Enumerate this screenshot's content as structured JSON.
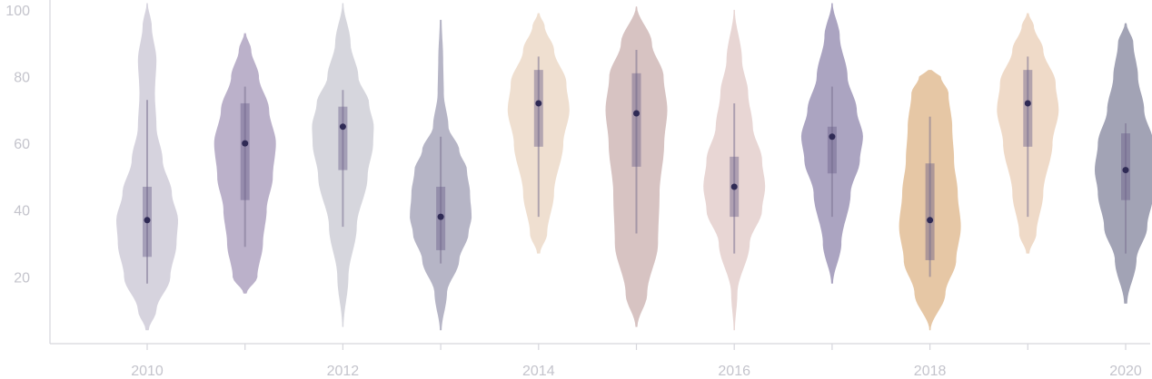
{
  "chart_data": {
    "type": "violin",
    "title": "",
    "xlabel": "",
    "ylabel": "",
    "ylim": [
      0,
      102
    ],
    "y_ticks": [
      20,
      40,
      60,
      80,
      100
    ],
    "x_ticks": [
      2010,
      2011,
      2012,
      2013,
      2014,
      2015,
      2016,
      2017,
      2018,
      2019,
      2020
    ],
    "x_tick_labels": [
      "2010",
      "",
      "2012",
      "",
      "2014",
      "",
      "2016",
      "",
      "2018",
      "",
      "2020"
    ],
    "grid": false,
    "legend": "none",
    "series": [
      {
        "x": 2010,
        "color": "#d6d3de",
        "min": 18,
        "q1": 26,
        "median": 37,
        "q3": 47,
        "max": 73,
        "range": [
          4,
          102
        ],
        "profile": [
          [
            4,
            0.05
          ],
          [
            10,
            0.3
          ],
          [
            20,
            0.75
          ],
          [
            30,
            0.95
          ],
          [
            37,
            1.0
          ],
          [
            45,
            0.8
          ],
          [
            55,
            0.5
          ],
          [
            65,
            0.3
          ],
          [
            75,
            0.25
          ],
          [
            85,
            0.3
          ],
          [
            95,
            0.15
          ],
          [
            102,
            0.02
          ]
        ]
      },
      {
        "x": 2011,
        "color": "#bbb1ca",
        "min": 29,
        "q1": 43,
        "median": 60,
        "q3": 72,
        "max": 77,
        "range": [
          15,
          93
        ],
        "profile": [
          [
            15,
            0.05
          ],
          [
            20,
            0.4
          ],
          [
            30,
            0.58
          ],
          [
            40,
            0.7
          ],
          [
            50,
            0.9
          ],
          [
            60,
            1.0
          ],
          [
            70,
            0.78
          ],
          [
            80,
            0.45
          ],
          [
            88,
            0.2
          ],
          [
            93,
            0.03
          ]
        ]
      },
      {
        "x": 2012,
        "color": "#d6d6dd",
        "min": 35,
        "q1": 52,
        "median": 65,
        "q3": 71,
        "max": 76,
        "range": [
          5,
          102
        ],
        "profile": [
          [
            5,
            0.02
          ],
          [
            20,
            0.18
          ],
          [
            35,
            0.45
          ],
          [
            50,
            0.8
          ],
          [
            60,
            0.98
          ],
          [
            65,
            1.0
          ],
          [
            72,
            0.85
          ],
          [
            80,
            0.5
          ],
          [
            90,
            0.25
          ],
          [
            102,
            0.02
          ]
        ]
      },
      {
        "x": 2013,
        "color": "#b6b5c6",
        "min": 24,
        "q1": 28,
        "median": 38,
        "q3": 47,
        "max": 62,
        "range": [
          4,
          97
        ],
        "profile": [
          [
            4,
            0.03
          ],
          [
            15,
            0.2
          ],
          [
            25,
            0.6
          ],
          [
            33,
            0.9
          ],
          [
            38,
            1.0
          ],
          [
            45,
            0.95
          ],
          [
            52,
            0.85
          ],
          [
            58,
            0.6
          ],
          [
            65,
            0.25
          ],
          [
            75,
            0.1
          ],
          [
            85,
            0.08
          ],
          [
            97,
            0.03
          ]
        ]
      },
      {
        "x": 2014,
        "color": "#efdfd0",
        "min": 38,
        "q1": 59,
        "median": 72,
        "q3": 82,
        "max": 86,
        "range": [
          27,
          99
        ],
        "profile": [
          [
            27,
            0.05
          ],
          [
            33,
            0.28
          ],
          [
            45,
            0.5
          ],
          [
            60,
            0.8
          ],
          [
            70,
            1.0
          ],
          [
            78,
            0.9
          ],
          [
            88,
            0.5
          ],
          [
            95,
            0.2
          ],
          [
            99,
            0.03
          ]
        ]
      },
      {
        "x": 2015,
        "color": "#d7c3c2",
        "min": 33,
        "q1": 53,
        "median": 69,
        "q3": 81,
        "max": 88,
        "range": [
          5,
          101
        ],
        "profile": [
          [
            5,
            0.03
          ],
          [
            15,
            0.35
          ],
          [
            30,
            0.7
          ],
          [
            45,
            0.75
          ],
          [
            60,
            0.9
          ],
          [
            70,
            1.0
          ],
          [
            80,
            0.88
          ],
          [
            90,
            0.5
          ],
          [
            101,
            0.02
          ]
        ]
      },
      {
        "x": 2016,
        "color": "#e8d6d4",
        "min": 27,
        "q1": 38,
        "median": 47,
        "q3": 56,
        "max": 72,
        "range": [
          4,
          100
        ],
        "profile": [
          [
            4,
            0.02
          ],
          [
            15,
            0.1
          ],
          [
            30,
            0.5
          ],
          [
            40,
            0.9
          ],
          [
            47,
            1.0
          ],
          [
            55,
            0.9
          ],
          [
            65,
            0.6
          ],
          [
            75,
            0.45
          ],
          [
            85,
            0.25
          ],
          [
            100,
            0.02
          ]
        ]
      },
      {
        "x": 2017,
        "color": "#aba4c1",
        "min": 38,
        "q1": 51,
        "median": 62,
        "q3": 65,
        "max": 77,
        "range": [
          18,
          102
        ],
        "profile": [
          [
            18,
            0.03
          ],
          [
            30,
            0.3
          ],
          [
            45,
            0.6
          ],
          [
            55,
            0.9
          ],
          [
            62,
            1.0
          ],
          [
            70,
            0.8
          ],
          [
            80,
            0.5
          ],
          [
            92,
            0.25
          ],
          [
            102,
            0.02
          ]
        ]
      },
      {
        "x": 2018,
        "color": "#e6c7a5",
        "min": 20,
        "q1": 25,
        "median": 37,
        "q3": 54,
        "max": 68,
        "range": [
          4,
          82
        ],
        "profile": [
          [
            4,
            0.02
          ],
          [
            15,
            0.5
          ],
          [
            25,
            0.85
          ],
          [
            35,
            1.0
          ],
          [
            45,
            0.9
          ],
          [
            55,
            0.78
          ],
          [
            65,
            0.72
          ],
          [
            75,
            0.6
          ],
          [
            80,
            0.35
          ],
          [
            82,
            0.05
          ]
        ]
      },
      {
        "x": 2019,
        "color": "#efdac8",
        "min": 38,
        "q1": 59,
        "median": 72,
        "q3": 82,
        "max": 86,
        "range": [
          27,
          99
        ],
        "profile": [
          [
            27,
            0.05
          ],
          [
            33,
            0.28
          ],
          [
            45,
            0.5
          ],
          [
            60,
            0.8
          ],
          [
            70,
            1.0
          ],
          [
            78,
            0.9
          ],
          [
            88,
            0.5
          ],
          [
            95,
            0.2
          ],
          [
            99,
            0.03
          ]
        ]
      },
      {
        "x": 2020,
        "color": "#a2a3b5",
        "min": 27,
        "q1": 43,
        "median": 52,
        "q3": 63,
        "max": 66,
        "range": [
          12,
          96
        ],
        "profile": [
          [
            12,
            0.05
          ],
          [
            25,
            0.35
          ],
          [
            35,
            0.7
          ],
          [
            45,
            0.9
          ],
          [
            52,
            1.0
          ],
          [
            60,
            0.9
          ],
          [
            70,
            0.6
          ],
          [
            80,
            0.4
          ],
          [
            90,
            0.25
          ],
          [
            96,
            0.03
          ]
        ]
      }
    ]
  }
}
